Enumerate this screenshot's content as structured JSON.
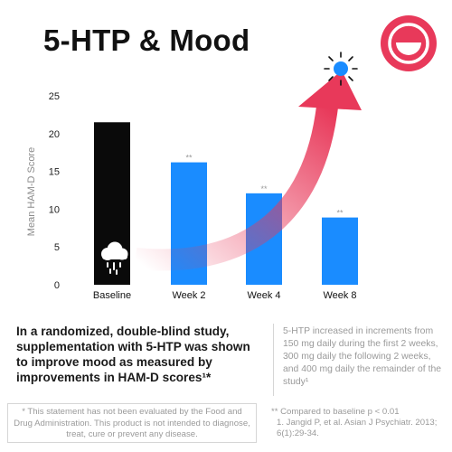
{
  "title": "5-HTP & Mood",
  "chart_data": {
    "type": "bar",
    "ylabel": "Mean HAM-D Score",
    "xlabel": "",
    "ylim": [
      0,
      25
    ],
    "yticks": [
      0,
      5,
      10,
      15,
      20,
      25
    ],
    "grid": false,
    "categories": [
      "Baseline",
      "Week 2",
      "Week 4",
      "Week 8"
    ],
    "values": [
      21.5,
      16.2,
      12.1,
      8.9
    ],
    "bar_colors": [
      "#0a0a0a",
      "#1a8cff",
      "#1a8cff",
      "#1a8cff"
    ],
    "significance": [
      "",
      "**",
      "**",
      "**"
    ]
  },
  "icons": {
    "logo": "smiling-face-logo",
    "rain": "rain-cloud-icon",
    "sun": "sun-icon",
    "arrow": "rising-arrow-icon"
  },
  "colors": {
    "accent": "#e8395a",
    "bar": "#1a8cff",
    "baseline_bar": "#0a0a0a",
    "sun": "#1a8cff"
  },
  "description": "In a randomized, double-blind study, supplementation with 5-HTP was shown to improve mood as measured by improvements in HAM-D scores¹*",
  "dosing_note": "5-HTP increased in increments from 150 mg daily during the first 2 weeks, 300 mg daily the following 2 weeks, and 400 mg daily the remainder of the study¹",
  "disclaimer": "* This statement has not been evaluated by the Food and Drug Administration. This product is not intended to diagnose, treat, cure or prevent any disease.",
  "footnotes": {
    "significance": "** Compared to baseline p < 0.01",
    "reference": "1. Jangid P, et al. Asian J Psychiatr. 2013; 6(1):29-34."
  }
}
